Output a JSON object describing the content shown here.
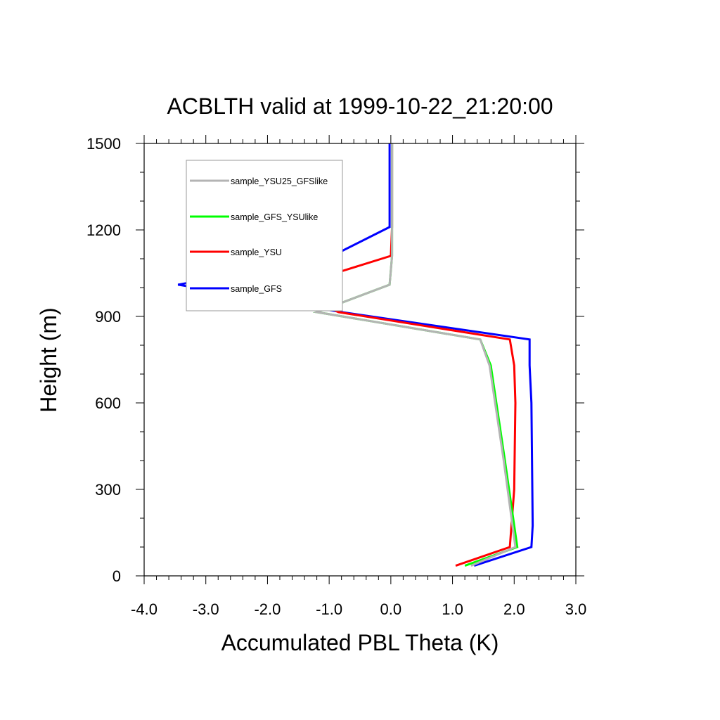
{
  "chart_data": {
    "type": "line",
    "title": "ACBLTH valid at 1999-10-22_21:20:00",
    "xlabel": "Accumulated PBL Theta (K)",
    "ylabel": "Height (m)",
    "xlim": [
      -4.0,
      3.0
    ],
    "ylim": [
      0,
      1500
    ],
    "xticks": [
      "-4.0",
      "-3.0",
      "-2.0",
      "-1.0",
      "0.0",
      "1.0",
      "2.0",
      "3.0"
    ],
    "yticks": [
      "0",
      "300",
      "600",
      "900",
      "1200",
      "1500"
    ],
    "grid": false,
    "legend_position": "top-left",
    "series": [
      {
        "name": "sample_YSU25_GFSlike",
        "color": "#b4b4b4",
        "x": [
          1.3,
          2.02,
          1.83,
          1.6,
          1.45,
          -1.2,
          -0.02,
          0.02,
          0.02,
          0.02,
          0.02
        ],
        "y": [
          35,
          100,
          400,
          730,
          820,
          915,
          1010,
          1110,
          1210,
          1330,
          1500
        ]
      },
      {
        "name": "sample_GFS_YSUlike",
        "color": "#00ff00",
        "x": [
          1.2,
          2.05,
          1.85,
          1.62,
          1.45,
          -1.2,
          -0.02,
          0.02,
          0.02,
          0.02,
          0.02
        ],
        "y": [
          35,
          100,
          400,
          730,
          820,
          915,
          1010,
          1110,
          1210,
          1330,
          1500
        ]
      },
      {
        "name": "sample_YSU",
        "color": "#ff0000",
        "x": [
          1.05,
          1.93,
          2.0,
          2.02,
          2.0,
          1.93,
          -0.85,
          -1.65,
          0.0,
          0.02,
          0.02,
          0.02
        ],
        "y": [
          35,
          100,
          300,
          600,
          730,
          820,
          915,
          1000,
          1110,
          1210,
          1330,
          1500
        ]
      },
      {
        "name": "sample_GFS",
        "color": "#0000ff",
        "x": [
          1.35,
          2.28,
          2.3,
          2.28,
          2.25,
          2.25,
          -0.8,
          -3.45,
          -0.95,
          -0.02,
          -0.02,
          -0.02
        ],
        "y": [
          35,
          100,
          175,
          600,
          730,
          820,
          915,
          1010,
          1110,
          1210,
          1330,
          1500
        ]
      }
    ]
  }
}
